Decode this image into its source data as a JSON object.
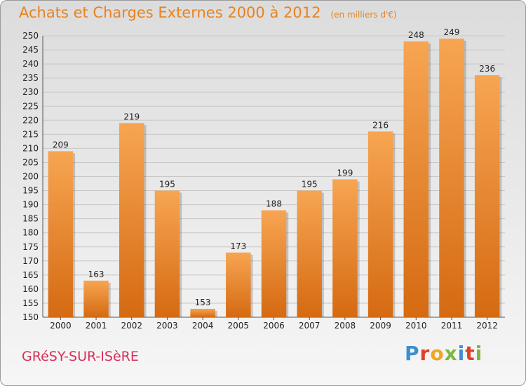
{
  "header": {
    "title": "Achats et Charges Externes 2000 à 2012",
    "unit": "(en milliers d'€)"
  },
  "footer": {
    "city": "GRéSY-SUR-ISèRE",
    "logo": {
      "text": "Proxiti",
      "letters": [
        {
          "ch": "P",
          "color": "#3b8fd1"
        },
        {
          "ch": "r",
          "color": "#e0402a"
        },
        {
          "ch": "o",
          "color": "#f2a51f"
        },
        {
          "ch": "x",
          "color": "#7ab83d"
        },
        {
          "ch": "i",
          "color": "#3b8fd1"
        },
        {
          "ch": "t",
          "color": "#e0402a"
        },
        {
          "ch": "i",
          "color": "#7ab83d"
        }
      ]
    }
  },
  "chart_data": {
    "type": "bar",
    "title": "Achats et Charges Externes 2000 à 2012",
    "subtitle": "(en milliers d'€)",
    "categories": [
      "2000",
      "2001",
      "2002",
      "2003",
      "2004",
      "2005",
      "2006",
      "2007",
      "2008",
      "2009",
      "2010",
      "2011",
      "2012"
    ],
    "values": [
      209,
      163,
      219,
      195,
      153,
      173,
      188,
      195,
      199,
      216,
      248,
      249,
      236
    ],
    "ylim": [
      150,
      250
    ],
    "ytick_step": 5,
    "grid": true,
    "bar_color": "#f0912f",
    "data_labels": true
  }
}
